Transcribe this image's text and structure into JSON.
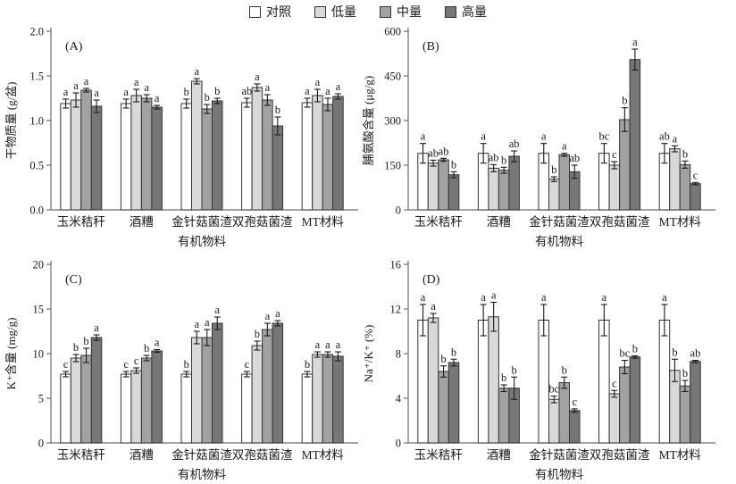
{
  "legend": {
    "items": [
      {
        "label": "对照",
        "color": "#ffffff"
      },
      {
        "label": "低量",
        "color": "#d9d9d9"
      },
      {
        "label": "中量",
        "color": "#a2a2a2"
      },
      {
        "label": "高量",
        "color": "#777777"
      }
    ]
  },
  "colors": {
    "bar_border": "#333333",
    "axis": "#6e6e6e",
    "error_bar": "#1a1a1a",
    "text": "#1a1a1a"
  },
  "chart_data": [
    {
      "type": "bar",
      "panel_label": "(A)",
      "ylabel": "干物质量 (g/盆)",
      "xlabel": "有机物料",
      "ylim": [
        0,
        2.0
      ],
      "yticks": [
        0,
        0.5,
        1.0,
        1.5,
        2.0
      ],
      "ytick_labels": [
        "0.0",
        "0.5",
        "1.0",
        "1.5",
        "2.0"
      ],
      "categories": [
        "玉米秸秆",
        "酒糟",
        "金针菇菌渣",
        "双孢菇菌渣",
        "MT材料"
      ],
      "series": [
        {
          "name": "对照",
          "values": [
            1.19,
            1.19,
            1.19,
            1.2,
            1.2
          ],
          "errors": [
            0.05,
            0.05,
            0.05,
            0.05,
            0.05
          ],
          "letters": [
            "a",
            "a",
            "b",
            "ab",
            "a"
          ]
        },
        {
          "name": "低量",
          "values": [
            1.23,
            1.28,
            1.44,
            1.37,
            1.28
          ],
          "errors": [
            0.08,
            0.07,
            0.03,
            0.04,
            0.07
          ],
          "letters": [
            "a",
            "a",
            "a",
            "a",
            "a"
          ]
        },
        {
          "name": "中量",
          "values": [
            1.34,
            1.25,
            1.13,
            1.23,
            1.18
          ],
          "errors": [
            0.02,
            0.04,
            0.05,
            0.06,
            0.07
          ],
          "letters": [
            "a",
            "a",
            "b",
            "a",
            "a"
          ]
        },
        {
          "name": "高量",
          "values": [
            1.16,
            1.15,
            1.22,
            0.94,
            1.27
          ],
          "errors": [
            0.07,
            0.02,
            0.03,
            0.1,
            0.03
          ],
          "letters": [
            "a",
            "a",
            "b",
            "b",
            "a"
          ]
        }
      ]
    },
    {
      "type": "bar",
      "panel_label": "(B)",
      "ylabel": "脯氨酸含量 (μg/g)",
      "xlabel": "有机物料",
      "ylim": [
        0,
        600
      ],
      "yticks": [
        0,
        150,
        300,
        450,
        600
      ],
      "ytick_labels": [
        "0",
        "150",
        "300",
        "450",
        "600"
      ],
      "categories": [
        "玉米秸秆",
        "酒糟",
        "金针菇菌渣",
        "双孢菇菌渣",
        "MT材料"
      ],
      "series": [
        {
          "name": "对照",
          "values": [
            190,
            190,
            190,
            190,
            190
          ],
          "errors": [
            33,
            33,
            33,
            33,
            33
          ],
          "letters": [
            "a",
            "a",
            "a",
            "bc",
            "ab"
          ]
        },
        {
          "name": "低量",
          "values": [
            157,
            140,
            103,
            150,
            205
          ],
          "errors": [
            10,
            12,
            8,
            12,
            10
          ],
          "letters": [
            "ab",
            "ab",
            "b",
            "c",
            "a"
          ]
        },
        {
          "name": "中量",
          "values": [
            168,
            133,
            185,
            303,
            152
          ],
          "errors": [
            5,
            10,
            5,
            40,
            12
          ],
          "letters": [
            "ab",
            "b",
            "a",
            "b",
            "b"
          ]
        },
        {
          "name": "高量",
          "values": [
            118,
            180,
            128,
            505,
            88
          ],
          "errors": [
            10,
            18,
            22,
            35,
            4
          ],
          "letters": [
            "b",
            "ab",
            "ab",
            "a",
            "c"
          ]
        }
      ]
    },
    {
      "type": "bar",
      "panel_label": "(C)",
      "ylabel": "K⁺含量 (mg/g)",
      "xlabel": "有机物料",
      "ylim": [
        0,
        20
      ],
      "yticks": [
        0,
        5,
        10,
        15,
        20
      ],
      "ytick_labels": [
        "0",
        "5",
        "10",
        "15",
        "20"
      ],
      "categories": [
        "玉米秸秆",
        "酒糟",
        "金针菇菌渣",
        "双孢菇菌渣",
        "MT材料"
      ],
      "series": [
        {
          "name": "对照",
          "values": [
            7.7,
            7.7,
            7.7,
            7.7,
            7.7
          ],
          "errors": [
            0.3,
            0.3,
            0.3,
            0.3,
            0.3
          ],
          "letters": [
            "c",
            "c",
            "b",
            "c",
            "b"
          ]
        },
        {
          "name": "低量",
          "values": [
            9.5,
            8.1,
            11.8,
            10.9,
            9.9
          ],
          "errors": [
            0.4,
            0.3,
            0.7,
            0.5,
            0.3
          ],
          "letters": [
            "b",
            "c",
            "a",
            "b",
            "a"
          ]
        },
        {
          "name": "中量",
          "values": [
            9.8,
            9.5,
            11.8,
            12.7,
            9.9
          ],
          "errors": [
            0.8,
            0.3,
            0.9,
            0.7,
            0.3
          ],
          "letters": [
            "b",
            "b",
            "a",
            "a",
            "a"
          ]
        },
        {
          "name": "高量",
          "values": [
            11.8,
            10.3,
            13.4,
            13.4,
            9.7
          ],
          "errors": [
            0.3,
            0.15,
            0.7,
            0.3,
            0.5
          ],
          "letters": [
            "a",
            "a",
            "a",
            "a",
            "a"
          ]
        }
      ]
    },
    {
      "type": "bar",
      "panel_label": "(D)",
      "ylabel": "Na⁺/K⁺ (%)",
      "xlabel": "有机物料",
      "ylim": [
        0,
        16
      ],
      "yticks": [
        0,
        4,
        8,
        12,
        16
      ],
      "ytick_labels": [
        "0",
        "4",
        "8",
        "12",
        "16"
      ],
      "categories": [
        "玉米秸秆",
        "酒糟",
        "金针菇菌渣",
        "双孢菇菌渣",
        "MT材料"
      ],
      "series": [
        {
          "name": "对照",
          "values": [
            11.0,
            11.0,
            11.0,
            11.0,
            11.0
          ],
          "errors": [
            1.4,
            1.4,
            1.4,
            1.4,
            1.4
          ],
          "letters": [
            "a",
            "a",
            "a",
            "a",
            "a"
          ]
        },
        {
          "name": "低量",
          "values": [
            11.2,
            11.3,
            3.9,
            4.4,
            6.5
          ],
          "errors": [
            0.4,
            1.3,
            0.3,
            0.3,
            1.0
          ],
          "letters": [
            "a",
            "a",
            "bc",
            "c",
            "b"
          ]
        },
        {
          "name": "中量",
          "values": [
            6.4,
            4.9,
            5.4,
            6.8,
            5.1
          ],
          "errors": [
            0.5,
            0.3,
            0.5,
            0.6,
            0.5
          ],
          "letters": [
            "b",
            "b",
            "b",
            "bc",
            "b"
          ]
        },
        {
          "name": "高量",
          "values": [
            7.2,
            4.9,
            2.9,
            7.7,
            7.3
          ],
          "errors": [
            0.3,
            1.0,
            0.15,
            0.1,
            0.1
          ],
          "letters": [
            "b",
            "b",
            "c",
            "b",
            "ab"
          ]
        }
      ]
    }
  ]
}
